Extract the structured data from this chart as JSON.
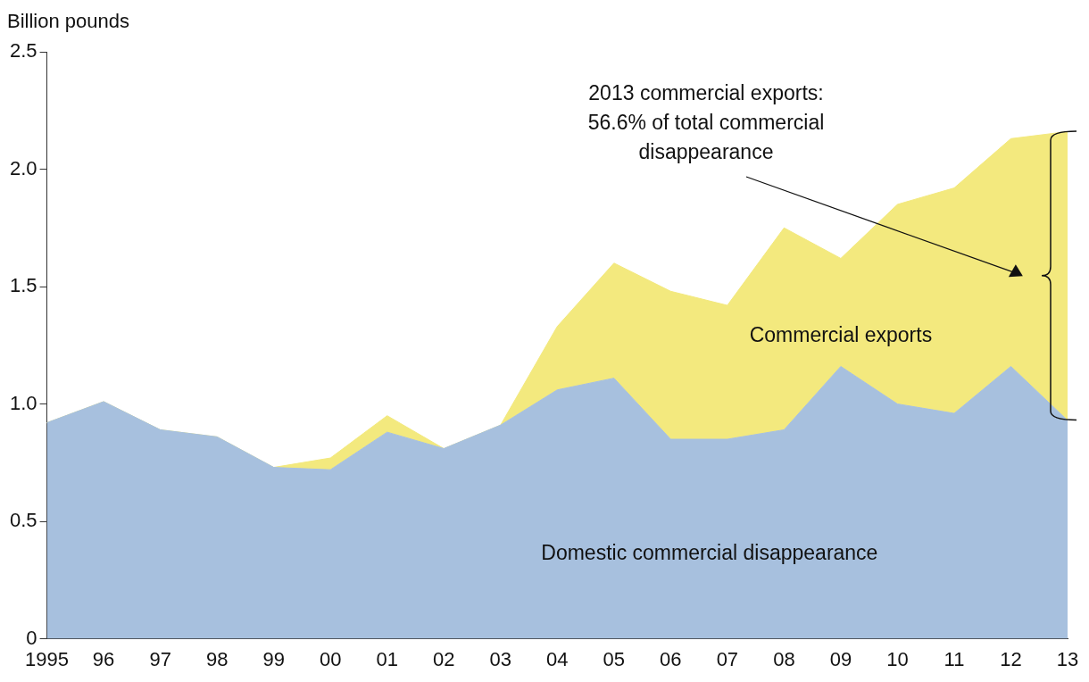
{
  "chart_data": {
    "type": "area",
    "ylabel": "Billion pounds",
    "stacked": true,
    "grid": false,
    "categories": [
      "1995",
      "96",
      "97",
      "98",
      "99",
      "00",
      "01",
      "02",
      "03",
      "04",
      "05",
      "06",
      "07",
      "08",
      "09",
      "10",
      "11",
      "12",
      "13"
    ],
    "series": [
      {
        "name": "Domestic commercial disappearance",
        "color": "#a7c0de",
        "values": [
          0.92,
          1.01,
          0.89,
          0.86,
          0.73,
          0.72,
          0.88,
          0.81,
          0.91,
          1.06,
          1.11,
          0.85,
          0.85,
          0.89,
          1.16,
          1.0,
          0.96,
          1.16,
          0.93
        ]
      },
      {
        "name": "Commercial exports",
        "color": "#f3e97e",
        "values": [
          0,
          0,
          0,
          0,
          0,
          0.05,
          0.07,
          0,
          0,
          0.27,
          0.49,
          0.63,
          0.57,
          0.86,
          0.46,
          0.85,
          0.96,
          0.97,
          1.23
        ]
      }
    ],
    "ylim": [
      0,
      2.5
    ],
    "yticks": [
      0,
      {
        "value": 0.5,
        "label": "0.5"
      },
      {
        "value": 1,
        "label": "1.0"
      },
      {
        "value": 1.5,
        "label": "1.5"
      },
      {
        "value": 2,
        "label": "2.0"
      },
      {
        "value": 2.5,
        "label": "2.5"
      }
    ],
    "annotations": [
      "2013 commercial exports: 56.6% of total commercial disappearance"
    ]
  }
}
